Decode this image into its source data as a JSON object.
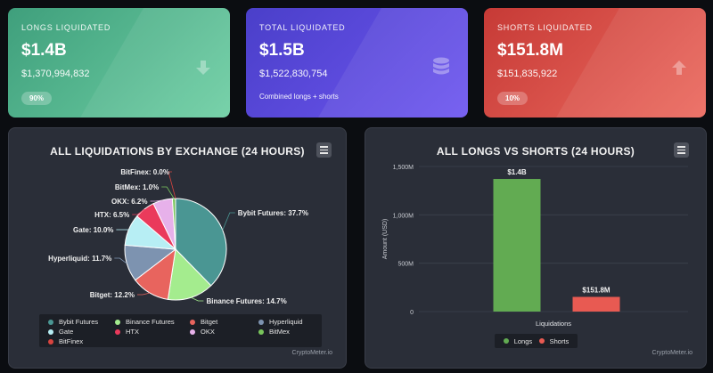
{
  "cards": {
    "longs": {
      "label": "LONGS LIQUIDATED",
      "value_short": "$1.4B",
      "value_full": "$1,370,994,832",
      "badge": "90%",
      "icon": "arrow-down-icon"
    },
    "total": {
      "label": "TOTAL LIQUIDATED",
      "value_short": "$1.5B",
      "value_full": "$1,522,830,754",
      "subtitle": "Combined longs + shorts",
      "icon": "database-icon"
    },
    "shorts": {
      "label": "SHORTS LIQUIDATED",
      "value_short": "$151.8M",
      "value_full": "$151,835,922",
      "badge": "10%",
      "icon": "arrow-up-icon"
    }
  },
  "pie_panel": {
    "credit": "CryptoMeter.io"
  },
  "bar_panel": {
    "credit": "CryptoMeter.io"
  },
  "chart_data": [
    {
      "type": "pie",
      "title": "ALL LIQUIDATIONS BY EXCHANGE (24 HOURS)",
      "slices": [
        {
          "name": "Bybit Futures",
          "value": 37.7,
          "label": "Bybit Futures: 37.7%",
          "color": "#4a9693"
        },
        {
          "name": "Binance Futures",
          "value": 14.7,
          "label": "Binance Futures: 14.7%",
          "color": "#a4ec8e"
        },
        {
          "name": "Bitget",
          "value": 12.2,
          "label": "Bitget: 12.2%",
          "color": "#e8645e"
        },
        {
          "name": "Hyperliquid",
          "value": 11.7,
          "label": "Hyperliquid: 11.7%",
          "color": "#7d93b0"
        },
        {
          "name": "Gate",
          "value": 10.0,
          "label": "Gate: 10.0%",
          "color": "#b7eef4"
        },
        {
          "name": "HTX",
          "value": 6.5,
          "label": "HTX: 6.5%",
          "color": "#ea3a5b"
        },
        {
          "name": "OKX",
          "value": 6.2,
          "label": "OKX: 6.2%",
          "color": "#e7b1ea"
        },
        {
          "name": "BitMex",
          "value": 1.0,
          "label": "BitMex: 1.0%",
          "color": "#79c55c"
        },
        {
          "name": "BitFinex",
          "value": 0.0,
          "label": "BitFinex: 0.0%",
          "color": "#d8443f"
        }
      ],
      "legend": [
        "Bybit Futures",
        "Binance Futures",
        "Bitget",
        "Hyperliquid",
        "Gate",
        "HTX",
        "OKX",
        "BitMex",
        "BitFinex"
      ],
      "legend_position": "bottom"
    },
    {
      "type": "bar",
      "title": "ALL LONGS VS SHORTS (24 HOURS)",
      "categories": [
        "Liquidations"
      ],
      "xlabel": "Liquidations",
      "ylabel": "Amount (USD)",
      "yticks": [
        "0",
        "500M",
        "1,000M",
        "1,500M"
      ],
      "ylim": [
        0,
        1500000000
      ],
      "grid": true,
      "series": [
        {
          "name": "Longs",
          "values": [
            1370994832
          ],
          "data_label": "$1.4B",
          "color": "#62ab52"
        },
        {
          "name": "Shorts",
          "values": [
            151835922
          ],
          "data_label": "$151.8M",
          "color": "#e85a52"
        }
      ],
      "legend_position": "bottom"
    }
  ]
}
